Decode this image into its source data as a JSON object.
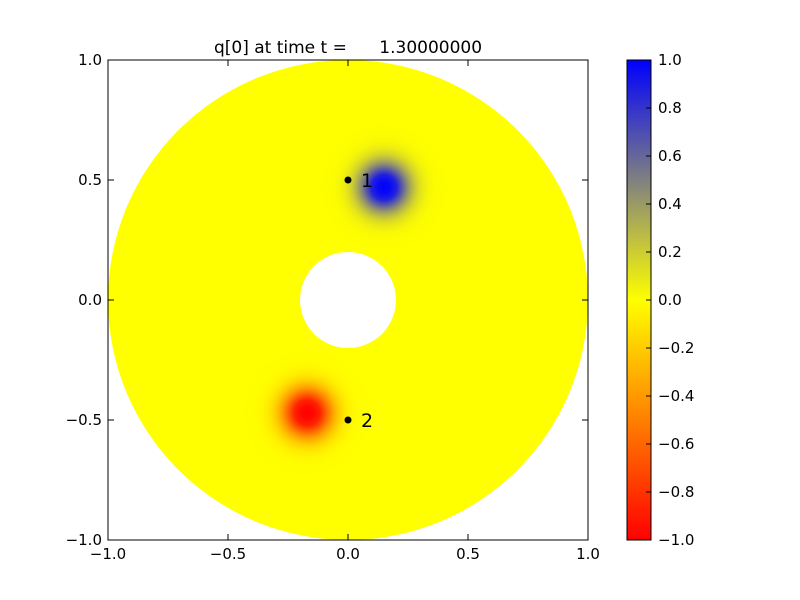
{
  "chart_data": {
    "type": "heatmap",
    "title": "q[0] at time t =      1.30000000",
    "xlim": [
      -1.0,
      1.0
    ],
    "ylim": [
      -1.0,
      1.0
    ],
    "x_ticks": [
      {
        "value": -1.0,
        "label": "−1.0"
      },
      {
        "value": -0.5,
        "label": "−0.5"
      },
      {
        "value": 0.0,
        "label": "0.0"
      },
      {
        "value": 0.5,
        "label": "0.5"
      },
      {
        "value": 1.0,
        "label": "1.0"
      }
    ],
    "y_ticks": [
      {
        "value": -1.0,
        "label": "−1.0"
      },
      {
        "value": -0.5,
        "label": "−0.5"
      },
      {
        "value": 0.0,
        "label": "0.0"
      },
      {
        "value": 0.5,
        "label": "0.5"
      },
      {
        "value": 1.0,
        "label": "1.0"
      }
    ],
    "domain": {
      "shape": "annulus",
      "inner_radius": 0.2,
      "outer_radius": 1.0,
      "background_value": 0.0
    },
    "blobs": [
      {
        "x": 0.15,
        "y": 0.47,
        "amplitude": 1.0,
        "width": 0.1
      },
      {
        "x": -0.17,
        "y": -0.47,
        "amplitude": -1.0,
        "width": 0.1
      }
    ],
    "markers": [
      {
        "x": 0.0,
        "y": 0.5,
        "label": "1"
      },
      {
        "x": 0.0,
        "y": -0.5,
        "label": "2"
      }
    ],
    "colorbar": {
      "range": [
        -1.0,
        1.0
      ],
      "stops": [
        {
          "value": -1.0,
          "color": "#ff0000"
        },
        {
          "value": 0.0,
          "color": "#ffff00"
        },
        {
          "value": 0.5,
          "color": "#808080"
        },
        {
          "value": 1.0,
          "color": "#0000ff"
        }
      ],
      "ticks": [
        {
          "value": 1.0,
          "label": "1.0"
        },
        {
          "value": 0.8,
          "label": "0.8"
        },
        {
          "value": 0.6,
          "label": "0.6"
        },
        {
          "value": 0.4,
          "label": "0.4"
        },
        {
          "value": 0.2,
          "label": "0.2"
        },
        {
          "value": 0.0,
          "label": "0.0"
        },
        {
          "value": -0.2,
          "label": "−0.2"
        },
        {
          "value": -0.4,
          "label": "−0.4"
        },
        {
          "value": -0.6,
          "label": "−0.6"
        },
        {
          "value": -0.8,
          "label": "−0.8"
        },
        {
          "value": -1.0,
          "label": "−1.0"
        }
      ]
    }
  }
}
